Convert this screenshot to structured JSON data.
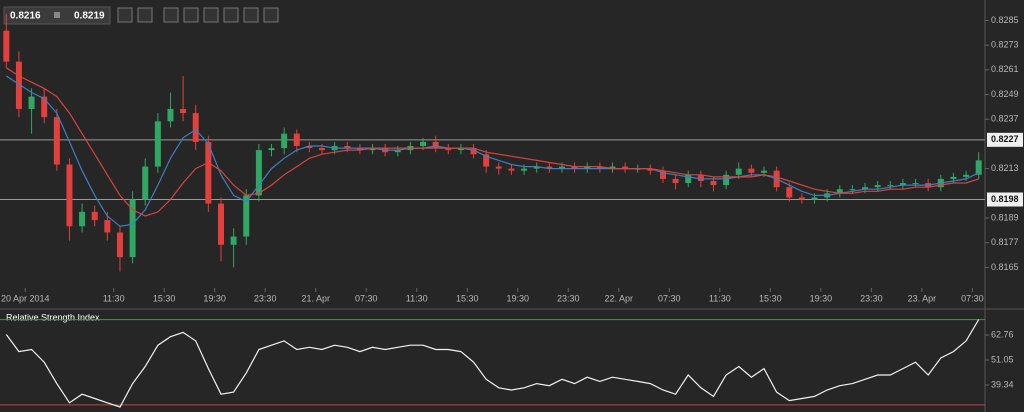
{
  "toolbar": {
    "bid": 0.8216,
    "ask": 0.8219
  },
  "chart_data": [
    {
      "type": "candlestick",
      "x": [
        0,
        1,
        2,
        3,
        4,
        5,
        6,
        7,
        8,
        9,
        10,
        11,
        12,
        13,
        14,
        15,
        16,
        17,
        18,
        19,
        20,
        21,
        22,
        23,
        24,
        25,
        26,
        27,
        28,
        29,
        30,
        31,
        32,
        33,
        34,
        35,
        36,
        37,
        38,
        39,
        40,
        41,
        42,
        43,
        44,
        45,
        46,
        47,
        48,
        49,
        50,
        51,
        52,
        53,
        54,
        55,
        56,
        57,
        58,
        59,
        60,
        61,
        62,
        63,
        64,
        65,
        66,
        67,
        68,
        69,
        70,
        71,
        72,
        73,
        74,
        75,
        76,
        77
      ],
      "open": [
        0.828,
        0.8265,
        0.8242,
        0.8248,
        0.8238,
        0.8215,
        0.8185,
        0.8192,
        0.8188,
        0.8182,
        0.817,
        0.8198,
        0.8214,
        0.8236,
        0.8242,
        0.824,
        0.8226,
        0.8196,
        0.8176,
        0.818,
        0.82,
        0.8222,
        0.8223,
        0.823,
        0.8224,
        0.8223,
        0.8222,
        0.8224,
        0.8223,
        0.8222,
        0.8223,
        0.8221,
        0.8222,
        0.8224,
        0.8226,
        0.8223,
        0.8222,
        0.8223,
        0.822,
        0.8214,
        0.8213,
        0.8212,
        0.8213,
        0.8214,
        0.8213,
        0.8214,
        0.8213,
        0.8214,
        0.8213,
        0.8214,
        0.8213,
        0.8213,
        0.8212,
        0.8208,
        0.8206,
        0.821,
        0.8207,
        0.8205,
        0.821,
        0.8213,
        0.8211,
        0.8212,
        0.8204,
        0.8199,
        0.8198,
        0.8199,
        0.8201,
        0.8203,
        0.8203,
        0.8204,
        0.8205,
        0.8205,
        0.8206,
        0.8206,
        0.8204,
        0.8208,
        0.8209,
        0.821
      ],
      "high": [
        0.8288,
        0.827,
        0.8252,
        0.8252,
        0.8242,
        0.8218,
        0.8196,
        0.8195,
        0.8192,
        0.8185,
        0.8202,
        0.8218,
        0.824,
        0.825,
        0.8258,
        0.8244,
        0.8229,
        0.8199,
        0.8184,
        0.8203,
        0.8225,
        0.8225,
        0.8233,
        0.8232,
        0.8226,
        0.8225,
        0.8226,
        0.8226,
        0.8225,
        0.8225,
        0.8225,
        0.8224,
        0.8226,
        0.8228,
        0.8229,
        0.8225,
        0.8225,
        0.8225,
        0.8222,
        0.8216,
        0.8215,
        0.8215,
        0.8216,
        0.8216,
        0.8216,
        0.8216,
        0.8216,
        0.8216,
        0.8216,
        0.8216,
        0.8215,
        0.8215,
        0.8214,
        0.821,
        0.8212,
        0.8212,
        0.8209,
        0.8212,
        0.8216,
        0.8215,
        0.8214,
        0.8214,
        0.8206,
        0.8201,
        0.8201,
        0.8203,
        0.8205,
        0.8205,
        0.8206,
        0.8207,
        0.8207,
        0.8208,
        0.8208,
        0.8208,
        0.821,
        0.8211,
        0.8212,
        0.8221
      ],
      "low": [
        0.8262,
        0.8238,
        0.823,
        0.8235,
        0.8212,
        0.8178,
        0.8182,
        0.8185,
        0.8178,
        0.8163,
        0.8167,
        0.8195,
        0.8211,
        0.8233,
        0.8236,
        0.8222,
        0.8192,
        0.8168,
        0.8165,
        0.8176,
        0.8197,
        0.8219,
        0.822,
        0.8221,
        0.8221,
        0.822,
        0.822,
        0.8221,
        0.822,
        0.822,
        0.8219,
        0.8219,
        0.822,
        0.8222,
        0.8221,
        0.822,
        0.822,
        0.8218,
        0.8211,
        0.821,
        0.821,
        0.821,
        0.8211,
        0.8211,
        0.8211,
        0.8211,
        0.8211,
        0.8211,
        0.8211,
        0.8211,
        0.8211,
        0.821,
        0.8206,
        0.8203,
        0.8204,
        0.8204,
        0.8202,
        0.8203,
        0.8208,
        0.8209,
        0.8209,
        0.8202,
        0.8197,
        0.8196,
        0.8196,
        0.8197,
        0.8199,
        0.8201,
        0.8201,
        0.8202,
        0.8203,
        0.8203,
        0.8204,
        0.8202,
        0.8202,
        0.8206,
        0.8207,
        0.8208
      ],
      "close": [
        0.8265,
        0.8242,
        0.8248,
        0.8238,
        0.8215,
        0.8185,
        0.8192,
        0.8188,
        0.8182,
        0.817,
        0.8198,
        0.8214,
        0.8236,
        0.8242,
        0.824,
        0.8226,
        0.8196,
        0.8176,
        0.818,
        0.82,
        0.8222,
        0.8223,
        0.823,
        0.8224,
        0.8223,
        0.8222,
        0.8224,
        0.8223,
        0.8222,
        0.8223,
        0.8221,
        0.8222,
        0.8224,
        0.8226,
        0.8223,
        0.8222,
        0.8223,
        0.822,
        0.8214,
        0.8213,
        0.8212,
        0.8213,
        0.8214,
        0.8213,
        0.8214,
        0.8213,
        0.8214,
        0.8213,
        0.8214,
        0.8213,
        0.8213,
        0.8212,
        0.8208,
        0.8206,
        0.821,
        0.8207,
        0.8205,
        0.821,
        0.8213,
        0.8211,
        0.8212,
        0.8204,
        0.8199,
        0.8198,
        0.8199,
        0.8201,
        0.8203,
        0.8203,
        0.8204,
        0.8205,
        0.8205,
        0.8206,
        0.8206,
        0.8204,
        0.8208,
        0.8209,
        0.821,
        0.8217
      ],
      "up_color": "#2fa864",
      "down_color": "#e2403c",
      "lines": [
        {
          "color": "#3d7fc1",
          "values": [
            0.8258,
            0.8254,
            0.825,
            0.8247,
            0.824,
            0.8226,
            0.8212,
            0.82,
            0.819,
            0.8185,
            0.8186,
            0.8193,
            0.8205,
            0.8218,
            0.8228,
            0.8232,
            0.8225,
            0.821,
            0.82,
            0.8197,
            0.8205,
            0.8213,
            0.8218,
            0.8222,
            0.8224,
            0.8224,
            0.8223,
            0.8223,
            0.8223,
            0.8223,
            0.8222,
            0.8222,
            0.8223,
            0.8223,
            0.8224,
            0.8223,
            0.8223,
            0.8222,
            0.8219,
            0.8217,
            0.8215,
            0.8214,
            0.8214,
            0.8213,
            0.8213,
            0.8213,
            0.8213,
            0.8213,
            0.8213,
            0.8213,
            0.8213,
            0.8213,
            0.8211,
            0.821,
            0.8209,
            0.8208,
            0.8208,
            0.8208,
            0.8209,
            0.821,
            0.821,
            0.8208,
            0.8205,
            0.8202,
            0.82,
            0.82,
            0.8201,
            0.8202,
            0.8203,
            0.8203,
            0.8204,
            0.8205,
            0.8205,
            0.8205,
            0.8206,
            0.8207,
            0.8208,
            0.8211
          ]
        },
        {
          "color": "#d8443f",
          "values": [
            0.8262,
            0.8258,
            0.8255,
            0.8252,
            0.8248,
            0.824,
            0.823,
            0.822,
            0.821,
            0.82,
            0.8193,
            0.819,
            0.8192,
            0.8198,
            0.8206,
            0.8213,
            0.8216,
            0.8212,
            0.8205,
            0.82,
            0.8201,
            0.8205,
            0.821,
            0.8214,
            0.8218,
            0.822,
            0.8221,
            0.8222,
            0.8222,
            0.8223,
            0.8223,
            0.8223,
            0.8223,
            0.8223,
            0.8223,
            0.8223,
            0.8223,
            0.8223,
            0.8221,
            0.822,
            0.8219,
            0.8218,
            0.8217,
            0.8216,
            0.8215,
            0.8214,
            0.8214,
            0.8214,
            0.8213,
            0.8213,
            0.8213,
            0.8213,
            0.8212,
            0.8211,
            0.821,
            0.821,
            0.8209,
            0.8209,
            0.8209,
            0.8209,
            0.821,
            0.8209,
            0.8207,
            0.8205,
            0.8203,
            0.8202,
            0.8201,
            0.8201,
            0.8202,
            0.8202,
            0.8203,
            0.8203,
            0.8204,
            0.8204,
            0.8205,
            0.8206,
            0.8206,
            0.8208
          ]
        }
      ],
      "xlim": [
        -0.5,
        77.5
      ],
      "xticks": [
        {
          "value": 1.5,
          "label": "20 Apr 2014"
        },
        {
          "value": 8.5,
          "label": "11:30"
        },
        {
          "value": 12.5,
          "label": "15:30"
        },
        {
          "value": 16.5,
          "label": "19:30"
        },
        {
          "value": 20.5,
          "label": "23:30"
        },
        {
          "value": 24.5,
          "label": "21. Apr"
        },
        {
          "value": 28.5,
          "label": "07:30"
        },
        {
          "value": 32.5,
          "label": "11:30"
        },
        {
          "value": 36.5,
          "label": "15:30"
        },
        {
          "value": 40.5,
          "label": "19:30"
        },
        {
          "value": 44.5,
          "label": "23:30"
        },
        {
          "value": 48.5,
          "label": "22. Apr"
        },
        {
          "value": 52.5,
          "label": "07:30"
        },
        {
          "value": 56.5,
          "label": "11:30"
        },
        {
          "value": 60.5,
          "label": "15:30"
        },
        {
          "value": 64.5,
          "label": "19:30"
        },
        {
          "value": 68.5,
          "label": "23:30"
        },
        {
          "value": 72.5,
          "label": "23. Apr"
        },
        {
          "value": 76.5,
          "label": "07:30"
        }
      ],
      "ylim": [
        0.8155,
        0.8293
      ],
      "yticks": [
        0.8285,
        0.8273,
        0.8261,
        0.8249,
        0.8237,
        0.8213,
        0.8189,
        0.8177,
        0.8165
      ],
      "levels": [
        0.8227,
        0.8198
      ],
      "level_color": "#9a9a9a"
    },
    {
      "type": "line",
      "title": "Relative Strength Index",
      "color": "#f2f2f2",
      "values": [
        63,
        55,
        56,
        50,
        40,
        31,
        35,
        33,
        31,
        29,
        40,
        48,
        58,
        62,
        64,
        60,
        47,
        35,
        36,
        45,
        56,
        58,
        60,
        56,
        57,
        56,
        58,
        57,
        55,
        57,
        56,
        57,
        58,
        58,
        56,
        56,
        55,
        50,
        42,
        38,
        37,
        38,
        40,
        39,
        42,
        40,
        43,
        41,
        43,
        42,
        41,
        40,
        37,
        35,
        44,
        38,
        34,
        44,
        48,
        43,
        47,
        36,
        32,
        33,
        34,
        37,
        39,
        40,
        42,
        44,
        44,
        47,
        50,
        44,
        52,
        55,
        60,
        70
      ],
      "ylim": [
        27.6,
        73.1
      ],
      "yticks": [
        62.76,
        51.05,
        39.34
      ],
      "levels": [
        {
          "value": 70,
          "color": "#3f9a48"
        },
        {
          "value": 30,
          "color": "#c8403a"
        }
      ]
    }
  ]
}
